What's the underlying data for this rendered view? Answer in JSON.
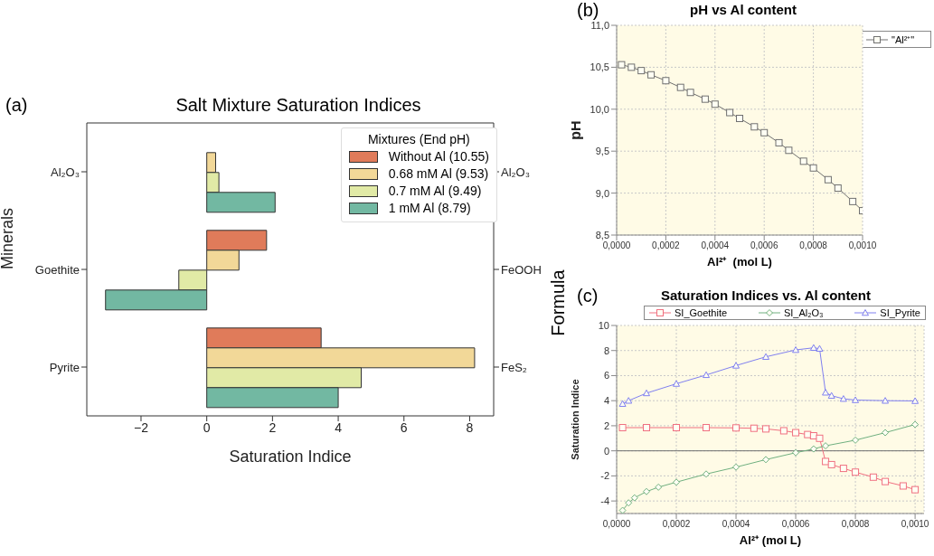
{
  "chart_data": [
    {
      "type": "bar",
      "orientation": "horizontal",
      "title": "Salt Mixture Saturation Indices",
      "xlabel": "Saturation Indice",
      "ylabel": "Minerals",
      "y2label": "Formula",
      "legend_title": "Mixtures (End pH)",
      "legend": "top right",
      "annotations": [
        "(a)"
      ],
      "categories": [
        "Al₂O₃",
        "Goethite",
        "Pyrite"
      ],
      "y2_categories": [
        "Al₂O₃",
        "FeOOH",
        "FeS₂"
      ],
      "series": [
        {
          "name": "Without Al (10.55)",
          "color": "#e07b5a",
          "values": [
            0,
            1.82,
            3.48
          ]
        },
        {
          "name": "0.68 mM Al (9.53)",
          "color": "#f2d898",
          "values": [
            0.27,
            0.98,
            8.15
          ]
        },
        {
          "name": "0.7 mM Al (9.49)",
          "color": "#e1eaa6",
          "values": [
            0.37,
            -0.85,
            4.7
          ]
        },
        {
          "name": "1 mM Al (8.79)",
          "color": "#72b8a2",
          "values": [
            2.08,
            -3.08,
            4.0
          ]
        }
      ],
      "xlim": [
        -3.65,
        8.73
      ],
      "xticks": [
        {
          "value": -2,
          "label": "−2"
        },
        0,
        2,
        4,
        6,
        8
      ]
    },
    {
      "type": "line",
      "title": "pH vs Al content",
      "xlabel": "Al²⁺  (mol L)",
      "ylabel": "pH",
      "legend": "top right",
      "grid": true,
      "marker": "square",
      "annotations": [
        "(b)"
      ],
      "series": [
        {
          "name": "\"Al²⁺\"",
          "color": "#707070",
          "x": [
            2e-05,
            6e-05,
            0.0001,
            0.00014,
            0.0002,
            0.00026,
            0.0003,
            0.00036,
            0.0004,
            0.00046,
            0.0005,
            0.00056,
            0.0006,
            0.00066,
            0.0007,
            0.00076,
            0.0008,
            0.00086,
            0.0009,
            0.00096,
            0.001
          ],
          "values": [
            10.53,
            10.5,
            10.46,
            10.41,
            10.34,
            10.26,
            10.2,
            10.12,
            10.06,
            9.96,
            9.89,
            9.79,
            9.72,
            9.6,
            9.51,
            9.38,
            9.3,
            9.16,
            9.06,
            8.9,
            8.79
          ]
        }
      ],
      "xlim": [
        0,
        0.001
      ],
      "xticks": [
        {
          "value": 0,
          "label": "0,0000"
        },
        {
          "value": 0.0002,
          "label": "0,0002"
        },
        {
          "value": 0.0004,
          "label": "0,0004"
        },
        {
          "value": 0.0006,
          "label": "0,0006"
        },
        {
          "value": 0.0008,
          "label": "0,0008"
        },
        {
          "value": 0.001,
          "label": "0,0010"
        }
      ],
      "ylim": [
        8.5,
        11
      ],
      "yticks": [
        {
          "value": 8.5,
          "label": "8,5"
        },
        {
          "value": 9,
          "label": "9,0"
        },
        {
          "value": 9.5,
          "label": "9,5"
        },
        {
          "value": 10,
          "label": "10,0"
        },
        {
          "value": 10.5,
          "label": "10,5"
        },
        {
          "value": 11,
          "label": "11,0"
        }
      ]
    },
    {
      "type": "line",
      "title": "Saturation Indices vs. Al content",
      "xlabel": "Al²⁺ (mol L)",
      "ylabel": "Saturation Indice",
      "legend": "top",
      "grid": true,
      "annotations": [
        "(c)"
      ],
      "series": [
        {
          "name": "SI_Goethite",
          "color": "#f07080",
          "marker": "square",
          "x": [
            2e-05,
            0.0001,
            0.0002,
            0.0003,
            0.0004,
            0.00046,
            0.0005,
            0.00056,
            0.0006,
            0.00064,
            0.00066,
            0.00068,
            0.0007,
            0.00072,
            0.00076,
            0.0008,
            0.00086,
            0.0009,
            0.00096,
            0.001
          ],
          "values": [
            1.85,
            1.85,
            1.85,
            1.85,
            1.83,
            1.8,
            1.75,
            1.6,
            1.45,
            1.3,
            1.2,
            1.0,
            -0.85,
            -1.1,
            -1.4,
            -1.7,
            -2.1,
            -2.45,
            -2.8,
            -3.1
          ]
        },
        {
          "name": "SI_Al₂O₃",
          "color": "#70b080",
          "marker": "diamond",
          "x": [
            2e-05,
            4e-05,
            6e-05,
            0.0001,
            0.00014,
            0.0002,
            0.0003,
            0.0004,
            0.0005,
            0.0006,
            0.00066,
            0.0007,
            0.0008,
            0.0009,
            0.001
          ],
          "values": [
            -4.75,
            -4.15,
            -3.75,
            -3.25,
            -2.9,
            -2.5,
            -1.85,
            -1.3,
            -0.7,
            -0.15,
            0.15,
            0.4,
            0.85,
            1.45,
            2.1
          ]
        },
        {
          "name": "SI_Pyrite",
          "color": "#8080f0",
          "marker": "triangle",
          "x": [
            2e-05,
            4e-05,
            0.0001,
            0.0002,
            0.0003,
            0.0004,
            0.0005,
            0.0006,
            0.00066,
            0.00068,
            0.0007,
            0.00072,
            0.00076,
            0.0008,
            0.0009,
            0.001
          ],
          "values": [
            3.75,
            4.0,
            4.6,
            5.35,
            6.05,
            6.8,
            7.5,
            8.05,
            8.22,
            8.15,
            4.65,
            4.4,
            4.15,
            4.05,
            4.0,
            3.98
          ]
        }
      ],
      "ref_lines": [
        {
          "axis": "y",
          "value": 0,
          "color": "#707070"
        }
      ],
      "xlim": [
        0,
        0.00103
      ],
      "xticks": [
        {
          "value": 0,
          "label": "0,0000"
        },
        {
          "value": 0.0002,
          "label": "0,0002"
        },
        {
          "value": 0.0004,
          "label": "0,0004"
        },
        {
          "value": 0.0006,
          "label": "0,0006"
        },
        {
          "value": 0.0008,
          "label": "0,0008"
        },
        {
          "value": 0.001,
          "label": "0,0010"
        }
      ],
      "ylim": [
        -5,
        10
      ],
      "yticks": [
        -4,
        -2,
        0,
        2,
        4,
        6,
        8,
        10
      ]
    }
  ]
}
